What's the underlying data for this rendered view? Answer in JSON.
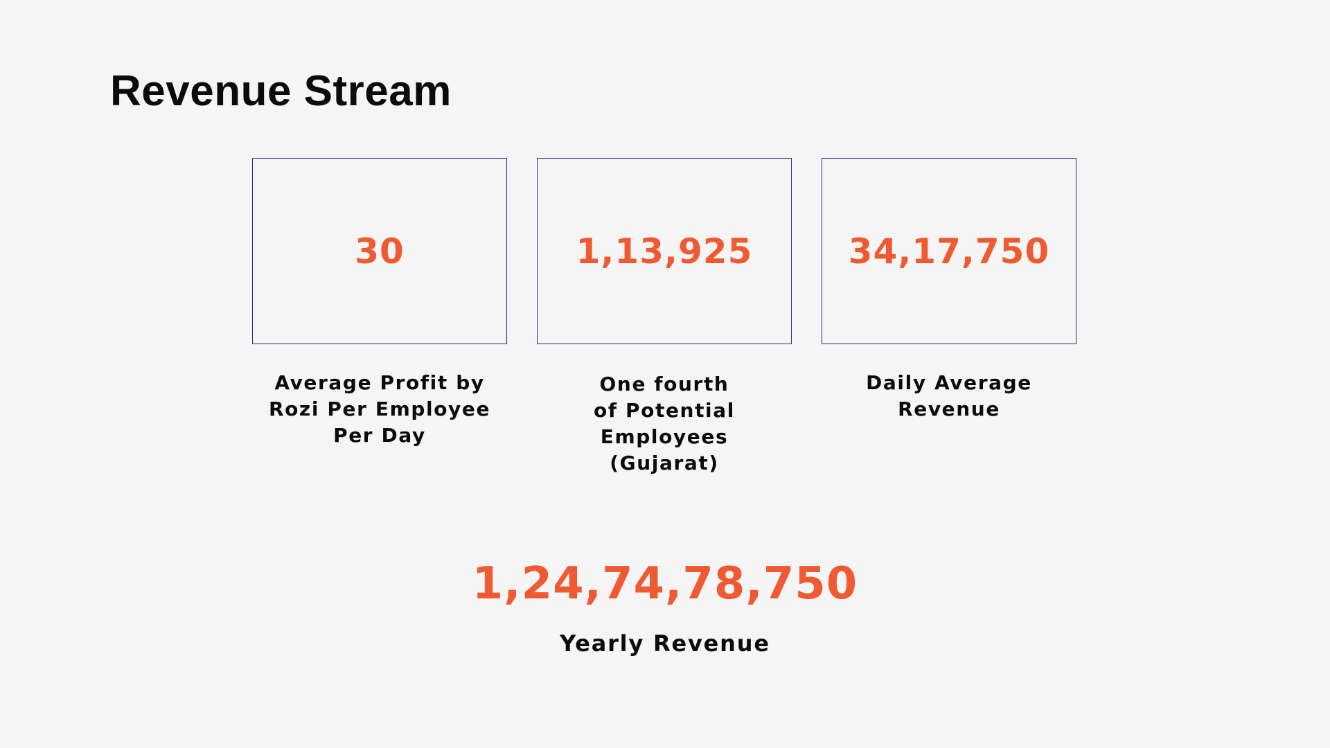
{
  "title": "Revenue Stream",
  "metrics": [
    {
      "value": "30",
      "label": "Average Profit by Rozi Per Employee Per Day"
    },
    {
      "value": "1,13,925",
      "label": "One fourth of Potential Employees (Gujarat)"
    },
    {
      "value": "34,17,750",
      "label": "Daily Average Revenue"
    }
  ],
  "yearly": {
    "value": "1,24,74,78,750",
    "label": "Yearly Revenue"
  },
  "colors": {
    "background": "#f5f5f5",
    "accent": "#f05a33",
    "box_border": "#2b2a86",
    "text": "#0b0b0b"
  }
}
